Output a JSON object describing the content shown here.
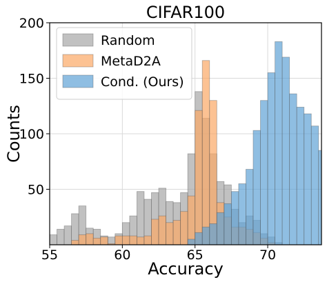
{
  "chart_data": {
    "type": "bar",
    "title": "CIFAR100",
    "xlabel": "Accuracy",
    "ylabel": "Counts",
    "xlim": [
      55,
      73.7
    ],
    "ylim": [
      0,
      200
    ],
    "xticks": [
      55,
      60,
      65,
      70
    ],
    "yticks": [
      50,
      100,
      150,
      200
    ],
    "grid": true,
    "legend_position": "top-left",
    "series": [
      {
        "name": "Random",
        "color": "#a6a6a6",
        "bin_start": 55.0,
        "bin_width": 0.5,
        "counts": [
          9,
          14,
          17,
          28,
          35,
          15,
          14,
          8,
          7,
          10,
          20,
          26,
          48,
          41,
          47,
          51,
          39,
          38,
          47,
          82,
          138,
          114,
          82,
          57,
          54,
          32,
          20,
          26,
          22,
          10,
          7,
          2,
          0,
          0,
          0,
          0,
          0,
          0
        ]
      },
      {
        "name": "MetaD2A",
        "color": "#fba865",
        "bin_start": 55.0,
        "bin_width": 0.5,
        "counts": [
          0,
          0,
          0,
          4,
          9,
          10,
          6,
          7,
          1,
          8,
          8,
          8,
          7,
          8,
          23,
          26,
          20,
          22,
          30,
          44,
          121,
          166,
          130,
          38,
          25,
          16,
          16,
          14,
          11,
          6,
          2,
          0,
          0,
          0,
          0,
          0,
          0,
          0
        ]
      },
      {
        "name": "Cond. (Ours)",
        "color": "#5fa2d6",
        "bin_start": 55.0,
        "bin_width": 0.5,
        "counts": [
          0,
          0,
          0,
          0,
          0,
          0,
          0,
          0,
          0,
          0,
          0,
          0,
          0,
          0,
          0,
          0,
          0,
          0,
          0,
          5,
          11,
          16,
          19,
          29,
          37,
          48,
          55,
          68,
          103,
          130,
          155,
          183,
          169,
          136,
          124,
          118,
          107,
          85
        ]
      }
    ]
  }
}
